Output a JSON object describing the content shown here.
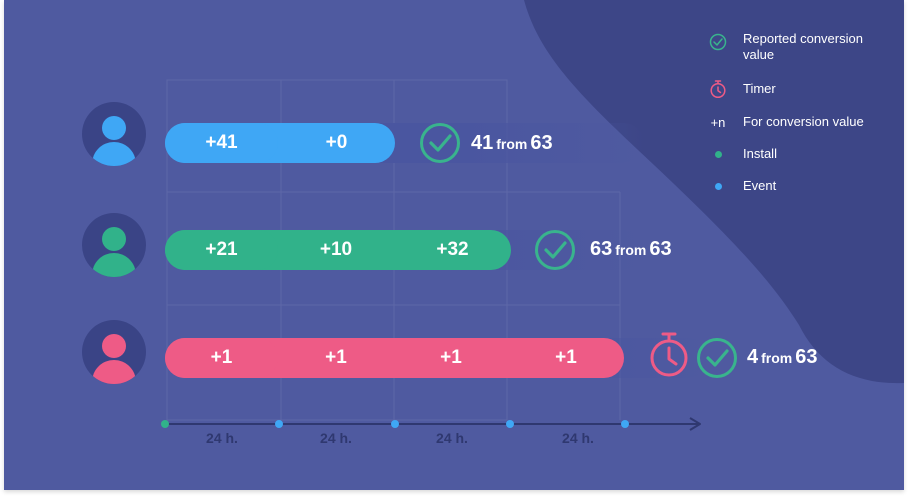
{
  "rows": [
    {
      "segments": [
        "+41",
        "+0"
      ],
      "result": {
        "value": "41",
        "word": "from",
        "total": "63"
      },
      "colors": {
        "main": "#3fa7f5",
        "head": "#3fa7f5",
        "track": "#4a56a0",
        "check": "#39b48d"
      },
      "timer": false
    },
    {
      "segments": [
        "+21",
        "+10",
        "+32"
      ],
      "result": {
        "value": "63",
        "word": "from",
        "total": "63"
      },
      "colors": {
        "main": "#31b28a",
        "head": "#31b28a",
        "track": "#4a56a0",
        "check": "#39b48d"
      },
      "timer": false
    },
    {
      "segments": [
        "+1",
        "+1",
        "+1",
        "+1"
      ],
      "result": {
        "value": "4",
        "word": "from",
        "total": "63"
      },
      "colors": {
        "main": "#ee5b86",
        "head": "#ee5b86",
        "track": "#4a56a0",
        "check": "#39b48d"
      },
      "timer": true
    }
  ],
  "axis": {
    "labels": [
      "24 h.",
      "24 h.",
      "24 h.",
      "24 h."
    ],
    "install_color": "#31b28a",
    "event_color": "#3fa7f5",
    "line_color": "#2f3870"
  },
  "legend": [
    {
      "icon": "check-circle-icon",
      "label": "Reported conversion value"
    },
    {
      "icon": "timer-icon",
      "label": "Timer"
    },
    {
      "icon": "plus-n-icon",
      "symbol": "+n",
      "label": "For conversion value"
    },
    {
      "icon": "green-dot-icon",
      "label": "Install"
    },
    {
      "icon": "blue-dot-icon",
      "label": "Event"
    }
  ],
  "colors": {
    "background": "#4f5aa0",
    "blob": "#3d4687",
    "grid": "#5e68a8",
    "check": "#39b48d",
    "timer": "#ee5b86"
  }
}
